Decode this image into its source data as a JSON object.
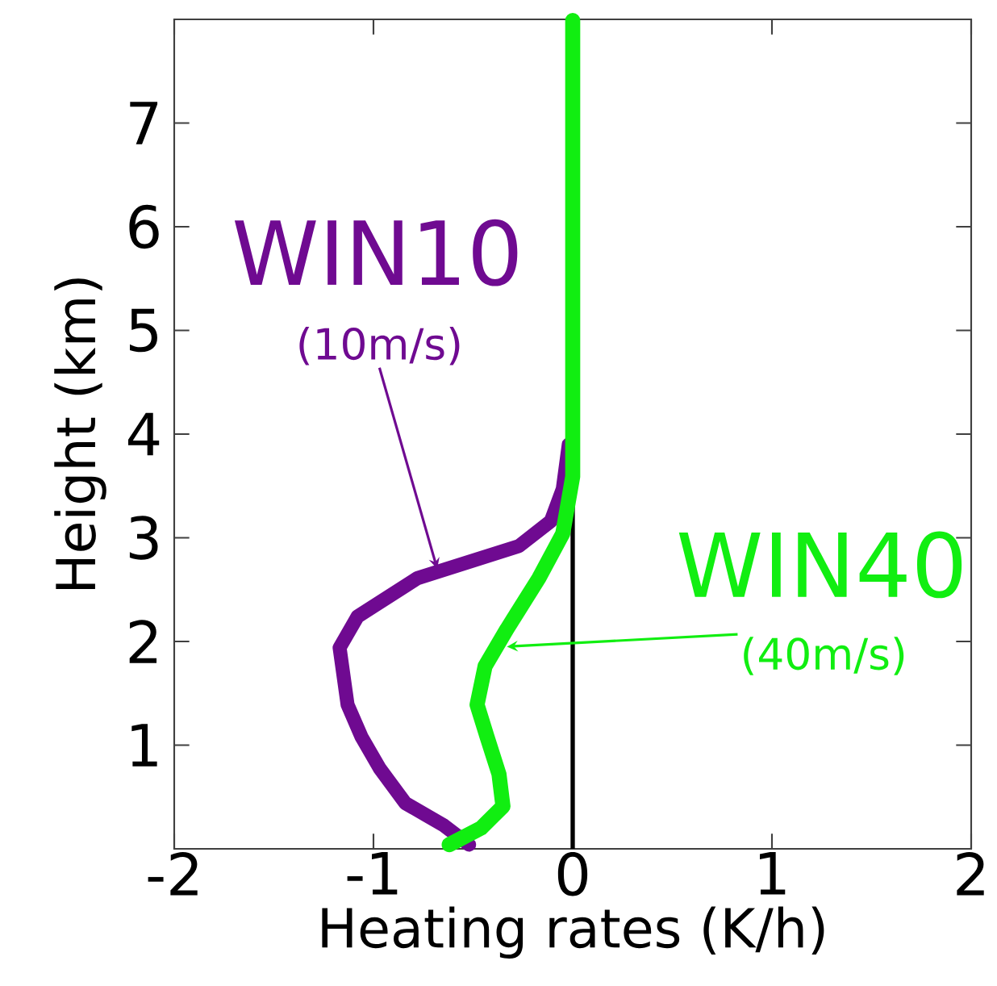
{
  "chart_data": {
    "type": "line",
    "xlabel": "Heating rates (K/h)",
    "ylabel": "Height (km)",
    "xlim": [
      -2,
      2
    ],
    "ylim": [
      0,
      8
    ],
    "xticks": [
      -2,
      -1,
      0,
      1,
      2
    ],
    "yticks": [
      1,
      2,
      3,
      4,
      5,
      6,
      7
    ],
    "grid": false,
    "legend": false,
    "series": [
      {
        "name": "WIN10",
        "color": "#6f0a91",
        "x": [
          -0.52,
          -0.65,
          -0.84,
          -0.97,
          -1.06,
          -1.13,
          -1.17,
          -1.08,
          -0.78,
          -0.27,
          -0.11,
          -0.05,
          -0.02
        ],
        "values": [
          0.04,
          0.23,
          0.44,
          0.78,
          1.08,
          1.39,
          1.94,
          2.24,
          2.61,
          2.92,
          3.16,
          3.47,
          3.9
        ]
      },
      {
        "name": "WIN40",
        "color": "#11ee11",
        "x": [
          -0.62,
          -0.46,
          -0.35,
          -0.37,
          -0.43,
          -0.48,
          -0.44,
          -0.33,
          -0.17,
          -0.05,
          0,
          0
        ],
        "values": [
          0.04,
          0.2,
          0.41,
          0.72,
          1.08,
          1.39,
          1.76,
          2.12,
          2.61,
          3.04,
          3.59,
          7.99
        ]
      }
    ],
    "ref_lines": [
      {
        "axis": "x",
        "value": 0,
        "color": "#000000"
      }
    ],
    "annotations": [
      {
        "text": "(10m/s)",
        "x": -0.68,
        "y": 2.7
      },
      {
        "text": "(40m/s)",
        "x": -0.33,
        "y": 1.95
      }
    ]
  }
}
